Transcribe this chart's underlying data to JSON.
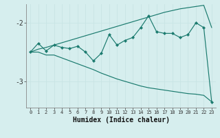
{
  "xlabel": "Humidex (Indice chaleur)",
  "bg_color": "#d6eeee",
  "line_color": "#1a7a6e",
  "grid_color_v": "#c8e4e4",
  "grid_color_h": "#c8e4e4",
  "x_data": [
    0,
    1,
    2,
    3,
    4,
    5,
    6,
    7,
    8,
    9,
    10,
    11,
    12,
    13,
    14,
    15,
    16,
    17,
    18,
    19,
    20,
    21,
    22,
    23
  ],
  "y_main": [
    -2.5,
    -2.35,
    -2.48,
    -2.38,
    -2.42,
    -2.44,
    -2.4,
    -2.5,
    -2.65,
    -2.52,
    -2.2,
    -2.38,
    -2.3,
    -2.25,
    -2.08,
    -1.88,
    -2.15,
    -2.18,
    -2.18,
    -2.25,
    -2.2,
    -2.0,
    -2.08,
    -3.35
  ],
  "y_upper": [
    -2.5,
    -2.45,
    -2.42,
    -2.38,
    -2.34,
    -2.3,
    -2.26,
    -2.22,
    -2.18,
    -2.14,
    -2.1,
    -2.06,
    -2.02,
    -1.98,
    -1.94,
    -1.9,
    -1.86,
    -1.82,
    -1.79,
    -1.76,
    -1.74,
    -1.72,
    -1.7,
    -2.08
  ],
  "y_lower": [
    -2.5,
    -2.5,
    -2.55,
    -2.55,
    -2.6,
    -2.65,
    -2.7,
    -2.75,
    -2.8,
    -2.86,
    -2.91,
    -2.96,
    -3.0,
    -3.04,
    -3.08,
    -3.11,
    -3.13,
    -3.15,
    -3.17,
    -3.19,
    -3.21,
    -3.22,
    -3.24,
    -3.35
  ],
  "ylim": [
    -3.45,
    -1.68
  ],
  "xlim": [
    -0.5,
    23.5
  ],
  "yticks": [
    -3.0,
    -2.0
  ],
  "xticks": [
    0,
    1,
    2,
    3,
    4,
    5,
    6,
    7,
    8,
    9,
    10,
    11,
    12,
    13,
    14,
    15,
    16,
    17,
    18,
    19,
    20,
    21,
    22,
    23
  ]
}
